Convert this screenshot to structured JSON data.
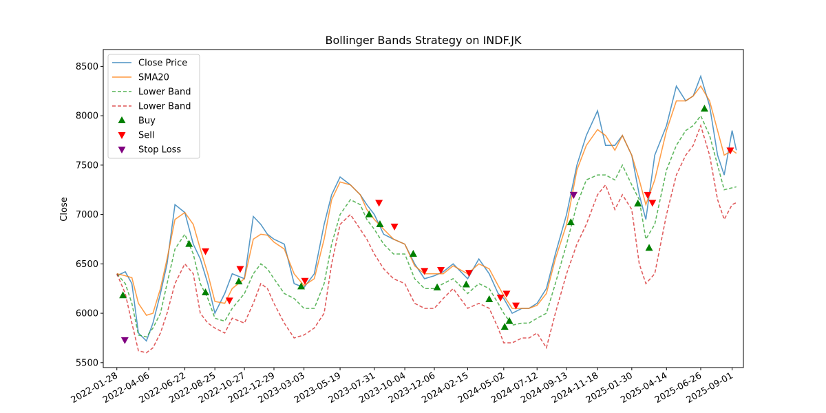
{
  "chart_data": {
    "type": "line",
    "title": "Bollinger Bands Strategy on INDF.JK",
    "xlabel": "",
    "ylabel": "Close",
    "ylim": [
      5450,
      8670
    ],
    "yticks": [
      5500,
      6000,
      6500,
      7000,
      7500,
      8000,
      8500
    ],
    "x_range": [
      "2021-12-30",
      "2025-09-25"
    ],
    "xticks": [
      "2022-01-28",
      "2022-04-06",
      "2022-06-22",
      "2022-08-25",
      "2022-10-27",
      "2022-12-29",
      "2023-03-03",
      "2023-05-19",
      "2023-07-31",
      "2023-10-04",
      "2023-12-06",
      "2024-02-15",
      "2024-05-02",
      "2024-07-12",
      "2024-09-13",
      "2024-11-18",
      "2025-01-30",
      "2025-04-14",
      "2025-06-26",
      "2025-09-01"
    ],
    "legend_position": "top-left",
    "grid": false,
    "dates": [
      "2022-01-28",
      "2022-02-15",
      "2022-03-01",
      "2022-03-15",
      "2022-04-01",
      "2022-04-15",
      "2022-05-01",
      "2022-05-15",
      "2022-06-01",
      "2022-06-22",
      "2022-07-10",
      "2022-07-25",
      "2022-08-10",
      "2022-08-25",
      "2022-09-15",
      "2022-10-01",
      "2022-10-27",
      "2022-11-15",
      "2022-12-01",
      "2022-12-15",
      "2022-12-29",
      "2023-01-20",
      "2023-02-10",
      "2023-03-03",
      "2023-03-25",
      "2023-04-15",
      "2023-05-01",
      "2023-05-19",
      "2023-06-10",
      "2023-07-01",
      "2023-07-15",
      "2023-07-31",
      "2023-08-20",
      "2023-09-10",
      "2023-10-04",
      "2023-10-25",
      "2023-11-15",
      "2023-12-06",
      "2023-12-25",
      "2024-01-15",
      "2024-02-15",
      "2024-03-10",
      "2024-04-01",
      "2024-04-20",
      "2024-05-02",
      "2024-05-20",
      "2024-06-10",
      "2024-06-25",
      "2024-07-12",
      "2024-08-01",
      "2024-08-20",
      "2024-09-13",
      "2024-10-05",
      "2024-10-25",
      "2024-11-18",
      "2024-12-05",
      "2024-12-25",
      "2025-01-10",
      "2025-01-30",
      "2025-02-15",
      "2025-03-01",
      "2025-03-20",
      "2025-04-14",
      "2025-05-05",
      "2025-05-25",
      "2025-06-10",
      "2025-06-26",
      "2025-07-15",
      "2025-08-01",
      "2025-08-15",
      "2025-09-01",
      "2025-09-10"
    ],
    "series": [
      {
        "name": "Close Price",
        "color": "#1f77b4",
        "style": "solid",
        "values": [
          6380,
          6420,
          6300,
          5800,
          5720,
          5900,
          6200,
          6500,
          7100,
          7020,
          6700,
          6550,
          6300,
          6000,
          6200,
          6400,
          6350,
          6980,
          6900,
          6800,
          6750,
          6700,
          6300,
          6260,
          6400,
          6900,
          7200,
          7380,
          7300,
          7200,
          7100,
          7000,
          6800,
          6750,
          6700,
          6500,
          6350,
          6380,
          6420,
          6500,
          6350,
          6550,
          6400,
          6200,
          6150,
          6000,
          6050,
          6050,
          6100,
          6250,
          6600,
          7000,
          7500,
          7800,
          8050,
          7700,
          7700,
          7800,
          7600,
          7200,
          6950,
          7600,
          7900,
          8300,
          8150,
          8200,
          8400,
          8100,
          7600,
          7400,
          7850,
          7650
        ]
      },
      {
        "name": "SMA20",
        "color": "#ff7f0e",
        "style": "solid",
        "values": [
          6400,
          6380,
          6360,
          6100,
          5980,
          6000,
          6250,
          6550,
          6950,
          7020,
          6900,
          6650,
          6400,
          6120,
          6100,
          6250,
          6350,
          6750,
          6800,
          6790,
          6720,
          6650,
          6400,
          6280,
          6350,
          6750,
          7150,
          7330,
          7300,
          7200,
          7050,
          6950,
          6850,
          6750,
          6700,
          6480,
          6400,
          6400,
          6400,
          6480,
          6400,
          6500,
          6450,
          6280,
          6180,
          6050,
          6050,
          6050,
          6080,
          6200,
          6550,
          6900,
          7450,
          7700,
          7860,
          7800,
          7650,
          7800,
          7600,
          7350,
          7100,
          7350,
          7850,
          8150,
          8150,
          8200,
          8300,
          8150,
          7850,
          7600,
          7650,
          7620
        ]
      },
      {
        "name": "Lower Band",
        "color": "#2ca02c",
        "style": "dashed",
        "values": [
          6400,
          6300,
          6100,
          5780,
          5760,
          5850,
          6000,
          6300,
          6650,
          6800,
          6600,
          6300,
          6150,
          5950,
          5920,
          6050,
          6200,
          6400,
          6500,
          6450,
          6350,
          6200,
          6150,
          6050,
          6050,
          6300,
          6700,
          7000,
          7150,
          7100,
          6950,
          6850,
          6700,
          6600,
          6600,
          6350,
          6250,
          6250,
          6300,
          6350,
          6200,
          6300,
          6250,
          6100,
          6000,
          5880,
          5900,
          5900,
          5950,
          6000,
          6300,
          6700,
          7100,
          7350,
          7400,
          7400,
          7350,
          7500,
          7300,
          7150,
          6750,
          6900,
          7450,
          7700,
          7850,
          7900,
          8000,
          7800,
          7500,
          7250,
          7270,
          7280
        ]
      },
      {
        "name": "Lower Band",
        "color": "#d62728",
        "style": "dashed",
        "values": [
          6400,
          6200,
          5900,
          5620,
          5600,
          5650,
          5800,
          6000,
          6300,
          6500,
          6400,
          6000,
          5900,
          5850,
          5800,
          5950,
          5900,
          6100,
          6300,
          6250,
          6100,
          5900,
          5750,
          5780,
          5850,
          6000,
          6500,
          6900,
          7000,
          6850,
          6750,
          6600,
          6450,
          6350,
          6300,
          6100,
          6050,
          6050,
          6150,
          6250,
          6050,
          6100,
          6050,
          5850,
          5700,
          5700,
          5750,
          5750,
          5800,
          5650,
          6000,
          6400,
          6700,
          6900,
          7200,
          7300,
          7050,
          7200,
          7050,
          6500,
          6300,
          6400,
          7000,
          7400,
          7600,
          7700,
          7900,
          7600,
          7150,
          6950,
          7100,
          7120
        ]
      }
    ],
    "signals": [
      {
        "name": "Buy",
        "color": "#008000",
        "marker": "triangle-up",
        "points": [
          [
            "2022-02-10",
            6180
          ],
          [
            "2022-07-01",
            6700
          ],
          [
            "2022-08-05",
            6210
          ],
          [
            "2022-10-15",
            6320
          ],
          [
            "2023-02-25",
            6270
          ],
          [
            "2023-07-20",
            7000
          ],
          [
            "2023-08-12",
            6900
          ],
          [
            "2023-10-22",
            6600
          ],
          [
            "2023-12-12",
            6260
          ],
          [
            "2024-02-12",
            6290
          ],
          [
            "2024-04-01",
            6140
          ],
          [
            "2024-05-04",
            5860
          ],
          [
            "2024-05-14",
            5920
          ],
          [
            "2024-09-22",
            6920
          ],
          [
            "2025-02-12",
            7110
          ],
          [
            "2025-03-08",
            6660
          ],
          [
            "2025-07-04",
            8070
          ]
        ]
      },
      {
        "name": "Sell",
        "color": "#ff0000",
        "marker": "triangle-down",
        "points": [
          [
            "2022-08-05",
            6630
          ],
          [
            "2022-09-25",
            6130
          ],
          [
            "2022-10-18",
            6450
          ],
          [
            "2023-03-05",
            6330
          ],
          [
            "2023-08-10",
            7120
          ],
          [
            "2023-09-12",
            6880
          ],
          [
            "2023-11-15",
            6430
          ],
          [
            "2023-12-20",
            6440
          ],
          [
            "2024-02-18",
            6410
          ],
          [
            "2024-04-25",
            6160
          ],
          [
            "2024-05-08",
            6200
          ],
          [
            "2024-05-28",
            6080
          ],
          [
            "2024-09-28",
            7200
          ],
          [
            "2025-03-05",
            7200
          ],
          [
            "2025-03-15",
            7120
          ],
          [
            "2025-08-28",
            7650
          ]
        ]
      },
      {
        "name": "Stop Loss",
        "color": "#800080",
        "marker": "triangle-down",
        "points": [
          [
            "2022-02-14",
            5730
          ],
          [
            "2024-09-28",
            7200
          ]
        ]
      }
    ]
  }
}
